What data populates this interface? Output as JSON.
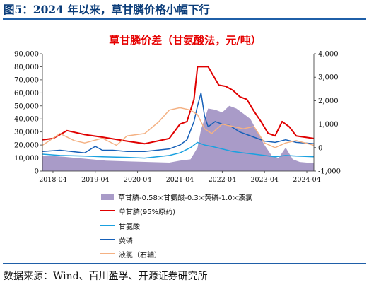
{
  "figure_title": "图5：2024 年以来，草甘膦价格小幅下行",
  "source_text": "数据来源：Wind、百川盈孚、开源证券研究所",
  "chart_data": {
    "type": "line",
    "title": "草甘膦价差（甘氨酸法，元/吨）",
    "title_color": "#e60000",
    "x_ticks": [
      "2018-04",
      "2019-04",
      "2020-04",
      "2021-04",
      "2022-04",
      "2023-04",
      "2024-04"
    ],
    "y_left_ticks": [
      "0",
      "10,000",
      "20,000",
      "30,000",
      "40,000",
      "50,000",
      "60,000",
      "70,000",
      "80,000",
      "90,000"
    ],
    "y_right_ticks": [
      "-1,000",
      "0",
      "1,000",
      "2,000",
      "3,000",
      "4,000"
    ],
    "ylim_left": [
      0,
      90000
    ],
    "ylim_right": [
      -1000,
      4000
    ],
    "x_range": [
      "2018-01",
      "2024-06"
    ],
    "grid": false,
    "legend_position": "bottom",
    "series": [
      {
        "name": "草甘膦-0.58×甘氨酸-0.3×黄磷-1.0×液氯",
        "type": "area",
        "axis": "left",
        "color": "#a99bc8",
        "x": [
          "2018-01",
          "2018-07",
          "2019-01",
          "2019-07",
          "2020-01",
          "2020-07",
          "2021-01",
          "2021-04",
          "2021-07",
          "2021-09",
          "2021-10",
          "2021-12",
          "2022-02",
          "2022-04",
          "2022-06",
          "2022-08",
          "2022-10",
          "2022-12",
          "2023-02",
          "2023-04",
          "2023-06",
          "2023-08",
          "2023-10",
          "2023-12",
          "2024-02",
          "2024-04",
          "2024-06"
        ],
        "y": [
          12000,
          11000,
          9500,
          8000,
          7500,
          7000,
          6500,
          8000,
          9000,
          18000,
          32000,
          48000,
          47000,
          45000,
          50000,
          48000,
          44000,
          40000,
          30000,
          20000,
          12000,
          10000,
          18000,
          9000,
          7000,
          6500,
          6000
        ]
      },
      {
        "name": "草甘膦(95%原药)",
        "type": "line",
        "axis": "left",
        "color": "#e00000",
        "x": [
          "2018-01",
          "2018-04",
          "2018-08",
          "2019-01",
          "2019-06",
          "2020-01",
          "2020-06",
          "2021-01",
          "2021-04",
          "2021-06",
          "2021-08",
          "2021-09",
          "2021-10",
          "2021-12",
          "2022-03",
          "2022-05",
          "2022-07",
          "2022-09",
          "2022-11",
          "2023-01",
          "2023-03",
          "2023-05",
          "2023-07",
          "2023-09",
          "2023-11",
          "2024-01",
          "2024-06"
        ],
        "y": [
          24000,
          25000,
          31000,
          28000,
          26000,
          23000,
          21000,
          25000,
          36000,
          38000,
          55000,
          80000,
          80000,
          80000,
          66000,
          65000,
          62000,
          57000,
          55000,
          46000,
          38000,
          29000,
          27000,
          38000,
          34000,
          27000,
          25000
        ]
      },
      {
        "name": "甘氨酸",
        "type": "line",
        "axis": "left",
        "color": "#1aa1e0",
        "x": [
          "2018-01",
          "2018-06",
          "2019-01",
          "2019-06",
          "2020-01",
          "2020-06",
          "2021-01",
          "2021-04",
          "2021-07",
          "2021-09",
          "2021-11",
          "2022-01",
          "2022-04",
          "2022-07",
          "2022-10",
          "2023-01",
          "2023-04",
          "2023-07",
          "2023-10",
          "2024-01",
          "2024-06"
        ],
        "y": [
          13000,
          12000,
          11500,
          11000,
          10500,
          10000,
          12000,
          14000,
          18000,
          22000,
          20000,
          19000,
          17000,
          15000,
          14000,
          13000,
          12000,
          11000,
          12000,
          11500,
          11000
        ]
      },
      {
        "name": "黄磷",
        "type": "line",
        "axis": "left",
        "color": "#1660b8",
        "x": [
          "2018-01",
          "2018-06",
          "2019-01",
          "2019-04",
          "2019-06",
          "2019-09",
          "2020-01",
          "2020-06",
          "2021-01",
          "2021-04",
          "2021-06",
          "2021-08",
          "2021-09",
          "2021-10",
          "2021-11",
          "2021-12",
          "2022-02",
          "2022-04",
          "2022-06",
          "2022-09",
          "2023-01",
          "2023-04",
          "2023-07",
          "2023-10",
          "2024-01",
          "2024-06"
        ],
        "y": [
          15000,
          16000,
          14000,
          19000,
          16000,
          16000,
          15000,
          15000,
          17000,
          20000,
          24000,
          38000,
          50000,
          60000,
          42000,
          34000,
          38000,
          36000,
          35000,
          30000,
          26000,
          23000,
          22000,
          24000,
          22000,
          21000
        ]
      },
      {
        "name": "液氯（右轴）",
        "type": "line",
        "axis": "right",
        "color": "#f4b183",
        "x": [
          "2018-01",
          "2018-06",
          "2018-10",
          "2019-01",
          "2019-06",
          "2019-10",
          "2020-01",
          "2020-06",
          "2020-10",
          "2021-01",
          "2021-04",
          "2021-07",
          "2021-09",
          "2021-11",
          "2022-01",
          "2022-04",
          "2022-07",
          "2022-10",
          "2023-01",
          "2023-04",
          "2023-07",
          "2023-10",
          "2024-01",
          "2024-06"
        ],
        "y": [
          100,
          600,
          300,
          200,
          400,
          100,
          500,
          600,
          1100,
          1600,
          1700,
          1600,
          1400,
          800,
          600,
          1000,
          900,
          800,
          900,
          200,
          0,
          200,
          300,
          100
        ]
      }
    ]
  }
}
